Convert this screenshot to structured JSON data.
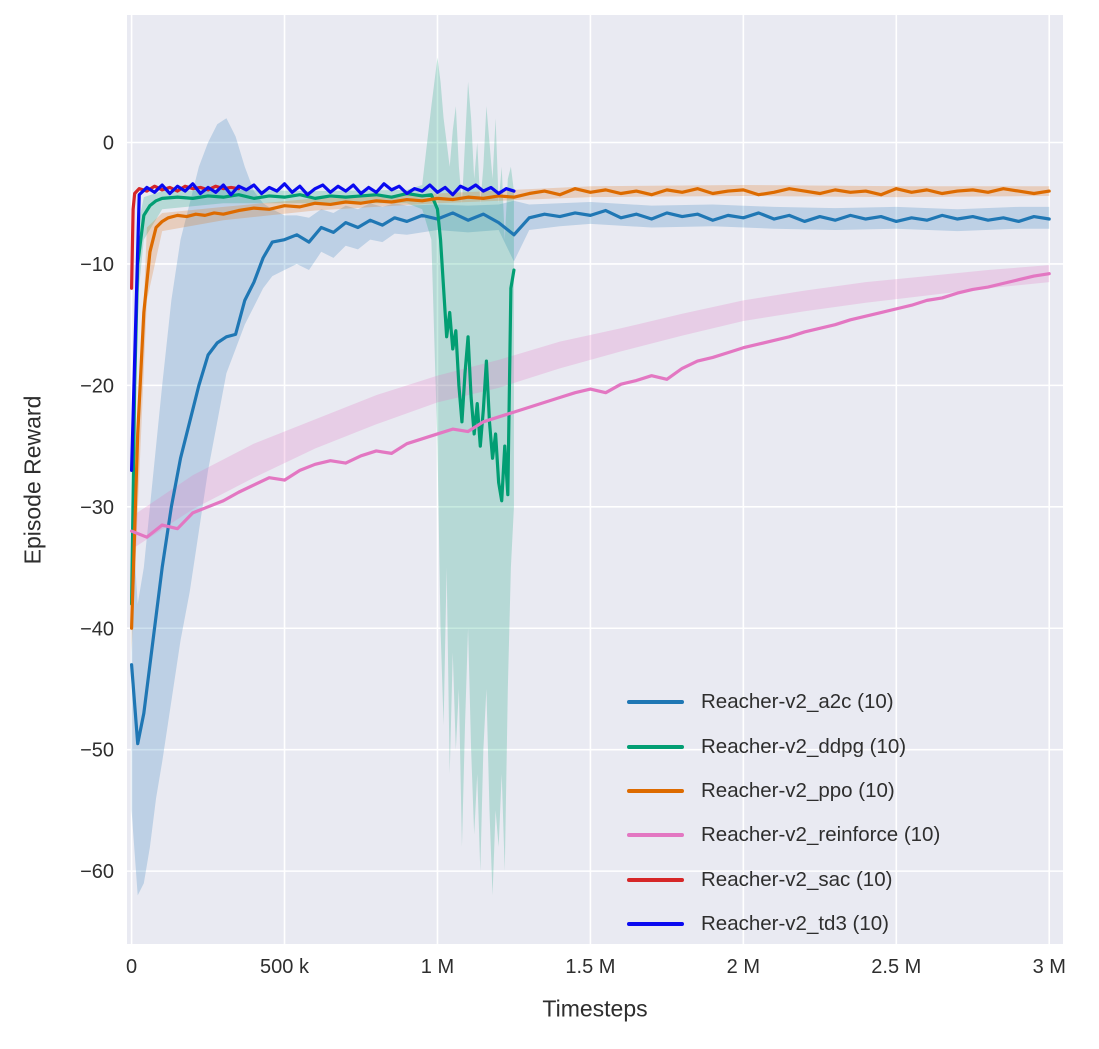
{
  "figure": {
    "background": "#ffffff",
    "plot_background": "#e9eaf2",
    "grid_color": "#ffffff",
    "text_color": "#2e2e2e",
    "line_width": 3.2
  },
  "chart_data": {
    "type": "line",
    "title": "",
    "xlabel": "Timesteps",
    "ylabel": "Episode Reward",
    "x_unit": "thousands of timesteps",
    "xlim_k": [
      -15,
      3045
    ],
    "ylim": [
      -66,
      10.5
    ],
    "grid": true,
    "legend_position": "lower right",
    "x_ticks": [
      {
        "v": 0,
        "label": "0"
      },
      {
        "v": 500,
        "label": "500 k"
      },
      {
        "v": 1000,
        "label": "1 M"
      },
      {
        "v": 1500,
        "label": "1.5 M"
      },
      {
        "v": 2000,
        "label": "2 M"
      },
      {
        "v": 2500,
        "label": "2.5 M"
      },
      {
        "v": 3000,
        "label": "3 M"
      }
    ],
    "y_ticks": [
      {
        "v": 0,
        "label": "0"
      },
      {
        "v": -10,
        "label": "−10"
      },
      {
        "v": -20,
        "label": "−20"
      },
      {
        "v": -30,
        "label": "−30"
      },
      {
        "v": -40,
        "label": "−40"
      },
      {
        "v": -50,
        "label": "−50"
      },
      {
        "v": -60,
        "label": "−60"
      }
    ],
    "series": [
      {
        "name": "Reacher-v2_a2c (10)",
        "color": "#1f77b4",
        "band_color": "rgba(31,119,180,0.22)",
        "x_k": [
          0,
          20,
          40,
          60,
          80,
          100,
          130,
          160,
          190,
          220,
          250,
          280,
          310,
          340,
          370,
          400,
          430,
          460,
          500,
          540,
          580,
          620,
          660,
          700,
          740,
          780,
          820,
          860,
          900,
          950,
          1000,
          1050,
          1100,
          1150,
          1200,
          1250,
          1300,
          1350,
          1400,
          1450,
          1500,
          1550,
          1600,
          1650,
          1700,
          1750,
          1800,
          1850,
          1900,
          1950,
          2000,
          2050,
          2100,
          2150,
          2200,
          2250,
          2300,
          2350,
          2400,
          2450,
          2500,
          2550,
          2600,
          2650,
          2700,
          2750,
          2800,
          2850,
          2900,
          2950,
          3000
        ],
        "y": [
          -43,
          -49.5,
          -47,
          -43,
          -39,
          -35,
          -30,
          -26,
          -23,
          -20,
          -17.5,
          -16.5,
          -16,
          -15.8,
          -13,
          -11.5,
          -9.5,
          -8.2,
          -8.0,
          -7.6,
          -8.2,
          -7.0,
          -7.4,
          -6.6,
          -7.0,
          -6.4,
          -6.8,
          -6.2,
          -6.5,
          -6.0,
          -6.3,
          -5.8,
          -6.4,
          -5.9,
          -6.6,
          -7.6,
          -6.2,
          -5.9,
          -6.1,
          -5.8,
          -6.0,
          -5.6,
          -6.2,
          -5.9,
          -6.3,
          -5.8,
          -6.1,
          -5.9,
          -6.4,
          -6.0,
          -6.2,
          -5.8,
          -6.3,
          -6.0,
          -6.5,
          -6.1,
          -6.4,
          -6.0,
          -6.3,
          -6.1,
          -6.5,
          -6.2,
          -6.4,
          -6.0,
          -6.3,
          -6.1,
          -6.4,
          -6.2,
          -6.5,
          -6.1,
          -6.3
        ],
        "band": {
          "x_k": [
            0,
            20,
            40,
            60,
            80,
            100,
            130,
            160,
            190,
            220,
            250,
            280,
            310,
            340,
            370,
            400,
            430,
            460,
            500,
            540,
            580,
            620,
            660,
            700,
            740,
            780,
            820,
            860,
            900,
            1000,
            1100,
            1200,
            1250,
            1300,
            1400,
            1500,
            1700,
            1900,
            2100,
            2300,
            2500,
            2700,
            2900,
            3000
          ],
          "lo": [
            -55,
            -62,
            -61,
            -58,
            -54,
            -51,
            -46,
            -41,
            -37,
            -32,
            -27,
            -23,
            -19,
            -17,
            -15,
            -13.5,
            -12,
            -11,
            -10.5,
            -10,
            -10.5,
            -9,
            -9.5,
            -8.5,
            -8.8,
            -8,
            -8.2,
            -7.5,
            -7.6,
            -7.2,
            -7.4,
            -7.2,
            -9.8,
            -7.2,
            -6.9,
            -6.7,
            -7.0,
            -6.9,
            -7.1,
            -7.2,
            -7.1,
            -7.3,
            -7.1,
            -7.1
          ],
          "hi": [
            -30,
            -38,
            -35,
            -30,
            -25,
            -20,
            -13,
            -8,
            -5,
            -2,
            0,
            1.5,
            2,
            0.5,
            -2,
            -4,
            -5,
            -5.5,
            -6,
            -6,
            -6.2,
            -5.5,
            -5.8,
            -5.2,
            -5.5,
            -5,
            -5.3,
            -5,
            -5.2,
            -5.1,
            -5.2,
            -5.1,
            -4.8,
            -5.1,
            -5.0,
            -4.9,
            -5.2,
            -5.1,
            -5.3,
            -5.4,
            -5.3,
            -5.5,
            -5.3,
            -5.3
          ]
        }
      },
      {
        "name": "Reacher-v2_ddpg (10)",
        "color": "#029e73",
        "band_color": "rgba(2,158,115,0.22)",
        "x_k": [
          0,
          10,
          20,
          40,
          60,
          80,
          100,
          150,
          200,
          250,
          300,
          350,
          400,
          450,
          500,
          550,
          600,
          650,
          700,
          750,
          800,
          850,
          900,
          950,
          980,
          1000,
          1010,
          1020,
          1030,
          1040,
          1050,
          1060,
          1070,
          1080,
          1090,
          1100,
          1110,
          1120,
          1130,
          1140,
          1150,
          1160,
          1170,
          1180,
          1190,
          1200,
          1210,
          1220,
          1230,
          1240,
          1250
        ],
        "y": [
          -38,
          -20,
          -10,
          -6,
          -5.2,
          -4.8,
          -4.6,
          -4.5,
          -4.6,
          -4.4,
          -4.5,
          -4.3,
          -4.6,
          -4.4,
          -4.5,
          -4.3,
          -4.6,
          -4.4,
          -4.5,
          -4.4,
          -4.3,
          -4.5,
          -4.2,
          -4.4,
          -4.3,
          -5.5,
          -8,
          -12,
          -16,
          -14,
          -17,
          -15.5,
          -20,
          -23,
          -19,
          -16,
          -21,
          -24,
          -21.5,
          -25,
          -22,
          -18,
          -23,
          -26,
          -24,
          -28,
          -29.5,
          -25,
          -29,
          -12,
          -10.5
        ],
        "band": {
          "x_k": [
            0,
            10,
            20,
            40,
            100,
            300,
            600,
            900,
            950,
            980,
            1000,
            1010,
            1020,
            1030,
            1040,
            1050,
            1060,
            1070,
            1080,
            1090,
            1100,
            1110,
            1120,
            1130,
            1140,
            1150,
            1160,
            1170,
            1180,
            1190,
            1200,
            1210,
            1220,
            1230,
            1240,
            1250
          ],
          "lo": [
            -40,
            -25,
            -13,
            -8,
            -5.5,
            -5,
            -5,
            -5,
            -5.5,
            -8,
            -25,
            -40,
            -48,
            -35,
            -52,
            -42,
            -50,
            -45,
            -58,
            -48,
            -40,
            -50,
            -57,
            -52,
            -60,
            -50,
            -45,
            -55,
            -62,
            -55,
            -58,
            -52,
            -60,
            -45,
            -35,
            -30
          ],
          "hi": [
            -34,
            -15,
            -7,
            -4.5,
            -4,
            -3.9,
            -4,
            -3.9,
            -3.5,
            3,
            7,
            5,
            2,
            0,
            -2,
            1,
            3,
            -2,
            -5,
            0,
            5,
            2,
            -3,
            0,
            -5,
            -2,
            3,
            0,
            -3,
            2,
            -5,
            -2,
            -8,
            -3,
            -2,
            -4
          ]
        }
      },
      {
        "name": "Reacher-v2_ppo (10)",
        "color": "#dd6b00",
        "band_color": "rgba(221,107,0,0.22)",
        "x_k": [
          0,
          20,
          40,
          60,
          80,
          100,
          120,
          150,
          180,
          210,
          240,
          270,
          300,
          350,
          400,
          450,
          500,
          550,
          600,
          650,
          700,
          750,
          800,
          850,
          900,
          950,
          1000,
          1050,
          1100,
          1150,
          1200,
          1250,
          1300,
          1350,
          1400,
          1450,
          1500,
          1550,
          1600,
          1650,
          1700,
          1750,
          1800,
          1850,
          1900,
          1950,
          2000,
          2050,
          2100,
          2150,
          2200,
          2250,
          2300,
          2350,
          2400,
          2450,
          2500,
          2550,
          2600,
          2650,
          2700,
          2750,
          2800,
          2850,
          2900,
          2950,
          3000
        ],
        "y": [
          -40,
          -24,
          -14,
          -9,
          -7,
          -6.5,
          -6.2,
          -6.0,
          -6.1,
          -5.9,
          -6.0,
          -5.8,
          -5.9,
          -5.6,
          -5.4,
          -5.5,
          -5.2,
          -5.3,
          -5.0,
          -5.1,
          -4.9,
          -5.0,
          -4.8,
          -4.9,
          -4.7,
          -4.8,
          -4.6,
          -4.7,
          -4.5,
          -4.6,
          -4.4,
          -4.5,
          -4.2,
          -4.0,
          -4.3,
          -3.8,
          -4.1,
          -3.9,
          -4.2,
          -4.0,
          -4.3,
          -3.9,
          -4.1,
          -3.8,
          -4.2,
          -4.0,
          -3.9,
          -4.3,
          -4.1,
          -3.8,
          -4.0,
          -4.2,
          -3.9,
          -4.1,
          -4.0,
          -4.3,
          -3.8,
          -4.1,
          -3.9,
          -4.2,
          -4.0,
          -3.9,
          -4.1,
          -3.8,
          -4.0,
          -4.2,
          -4.0
        ],
        "band": {
          "x_k": [
            0,
            50,
            100,
            300,
            600,
            1000,
            1500,
            2000,
            2500,
            3000
          ],
          "lo": [
            -42,
            -13,
            -7.3,
            -6.4,
            -5.6,
            -5.0,
            -4.5,
            -4.4,
            -4.5,
            -4.4
          ],
          "hi": [
            -38,
            -7,
            -5.8,
            -5.3,
            -4.6,
            -4.2,
            -3.6,
            -3.5,
            -3.6,
            -3.6
          ]
        }
      },
      {
        "name": "Reacher-v2_reinforce (10)",
        "color": "#e377c2",
        "band_color": "rgba(227,119,194,0.25)",
        "x_k": [
          0,
          50,
          100,
          150,
          200,
          250,
          300,
          350,
          400,
          450,
          500,
          550,
          600,
          650,
          700,
          750,
          800,
          850,
          900,
          950,
          1000,
          1050,
          1100,
          1150,
          1200,
          1250,
          1300,
          1350,
          1400,
          1450,
          1500,
          1550,
          1600,
          1650,
          1700,
          1750,
          1800,
          1850,
          1900,
          1950,
          2000,
          2050,
          2100,
          2150,
          2200,
          2250,
          2300,
          2350,
          2400,
          2450,
          2500,
          2550,
          2600,
          2650,
          2700,
          2750,
          2800,
          2850,
          2900,
          2950,
          3000
        ],
        "y": [
          -32,
          -32.5,
          -31.5,
          -31.8,
          -30.5,
          -30.0,
          -29.5,
          -28.8,
          -28.2,
          -27.6,
          -27.8,
          -27.0,
          -26.5,
          -26.2,
          -26.4,
          -25.8,
          -25.4,
          -25.6,
          -24.8,
          -24.4,
          -24.0,
          -23.6,
          -23.8,
          -23.0,
          -22.6,
          -22.2,
          -21.8,
          -21.4,
          -21.0,
          -20.6,
          -20.3,
          -20.6,
          -19.9,
          -19.6,
          -19.2,
          -19.5,
          -18.6,
          -18.0,
          -17.7,
          -17.3,
          -16.9,
          -16.6,
          -16.3,
          -16.0,
          -15.6,
          -15.3,
          -15.0,
          -14.6,
          -14.3,
          -14.0,
          -13.7,
          -13.4,
          -13.0,
          -12.8,
          -12.4,
          -12.1,
          -11.9,
          -11.6,
          -11.3,
          -11.0,
          -10.8
        ],
        "band": {
          "x_k": [
            0,
            200,
            400,
            600,
            800,
            1000,
            1200,
            1400,
            1600,
            1800,
            2000,
            2200,
            2400,
            2600,
            2800,
            3000
          ],
          "lo": [
            -33.5,
            -30.2,
            -27.6,
            -25.2,
            -23.2,
            -21.4,
            -20.2,
            -18.6,
            -17.2,
            -15.9,
            -14.7,
            -13.9,
            -13.2,
            -12.6,
            -12.0,
            -11.5
          ],
          "hi": [
            -30.8,
            -27.4,
            -24.8,
            -22.8,
            -20.8,
            -19.2,
            -17.9,
            -16.4,
            -15.3,
            -14.1,
            -13.0,
            -12.2,
            -11.5,
            -11.0,
            -10.5,
            -10.1
          ]
        }
      },
      {
        "name": "Reacher-v2_sac (10)",
        "color": "#d62728",
        "band_color": "rgba(214,39,40,0.2)",
        "x_k": [
          0,
          5,
          10,
          25,
          50,
          75,
          100,
          125,
          150,
          175,
          200,
          225,
          250,
          275,
          300,
          325,
          350
        ],
        "y": [
          -12,
          -5.5,
          -4.2,
          -3.8,
          -4.0,
          -3.6,
          -3.9,
          -3.7,
          -4.0,
          -3.6,
          -3.8,
          -3.7,
          -3.9,
          -3.6,
          -3.8,
          -3.7,
          -3.8
        ]
      },
      {
        "name": "Reacher-v2_td3 (10)",
        "color": "#0a0af0",
        "band_color": "rgba(10,10,240,0.2)",
        "x_k": [
          0,
          25,
          50,
          75,
          100,
          125,
          150,
          175,
          200,
          225,
          250,
          275,
          300,
          325,
          350,
          375,
          400,
          425,
          450,
          475,
          500,
          525,
          550,
          575,
          600,
          625,
          650,
          675,
          700,
          725,
          750,
          775,
          800,
          825,
          850,
          875,
          900,
          925,
          950,
          975,
          1000,
          1025,
          1050,
          1075,
          1100,
          1125,
          1150,
          1175,
          1200,
          1225,
          1250
        ],
        "y": [
          -27,
          -4.3,
          -3.7,
          -4.1,
          -3.5,
          -4.2,
          -3.6,
          -4.0,
          -3.4,
          -4.2,
          -3.7,
          -4.1,
          -3.5,
          -4.3,
          -3.6,
          -3.9,
          -3.5,
          -4.2,
          -3.7,
          -4.0,
          -3.4,
          -4.1,
          -3.6,
          -4.3,
          -3.8,
          -3.5,
          -4.1,
          -3.6,
          -4.0,
          -3.5,
          -4.2,
          -3.7,
          -4.1,
          -3.4,
          -3.9,
          -3.6,
          -4.2,
          -3.8,
          -4.0,
          -3.5,
          -4.1,
          -3.7,
          -4.3,
          -3.6,
          -3.9,
          -3.5,
          -4.0,
          -3.7,
          -4.2,
          -3.8,
          -4.0
        ]
      }
    ]
  }
}
